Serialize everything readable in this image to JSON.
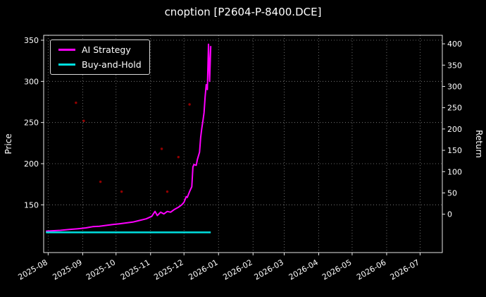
{
  "title": "cnoption [P2604-P-8400.DCE]",
  "colors": {
    "background": "#000000",
    "text": "#ffffff",
    "grid": "#888888",
    "axis": "#ffffff",
    "ai_strategy": "#ff00ff",
    "buy_and_hold": "#00e0e0",
    "signal_marker": "#a40000"
  },
  "legend": {
    "items": [
      {
        "label": "AI Strategy",
        "color": "#ff00ff"
      },
      {
        "label": "Buy-and-Hold",
        "color": "#00e0e0"
      }
    ]
  },
  "chart_data": {
    "type": "line",
    "title": "cnoption [P2604-P-8400.DCE]",
    "xlabel": "",
    "ylabel_left": "Price",
    "ylabel_right": "Return",
    "x_domain": [
      "2025-07-28",
      "2026-07-21"
    ],
    "x_ticks": [
      {
        "date": "2025-08-01",
        "label": "2025-08"
      },
      {
        "date": "2025-09-01",
        "label": "2025-09"
      },
      {
        "date": "2025-10-01",
        "label": "2025-10"
      },
      {
        "date": "2025-11-01",
        "label": "2025-11"
      },
      {
        "date": "2025-12-01",
        "label": "2025-12"
      },
      {
        "date": "2026-01-01",
        "label": "2026-01"
      },
      {
        "date": "2026-02-01",
        "label": "2026-02"
      },
      {
        "date": "2026-03-01",
        "label": "2026-03"
      },
      {
        "date": "2026-04-01",
        "label": "2026-04"
      },
      {
        "date": "2026-05-01",
        "label": "2026-05"
      },
      {
        "date": "2026-06-01",
        "label": "2026-06"
      },
      {
        "date": "2026-07-01",
        "label": "2026-07"
      }
    ],
    "y_left_range": [
      92,
      356
    ],
    "y_left_ticks": [
      150,
      200,
      250,
      300,
      350
    ],
    "y_right_range": [
      -90,
      420
    ],
    "y_right_ticks": [
      0,
      50,
      100,
      150,
      200,
      250,
      300,
      350,
      400
    ],
    "grid": true,
    "legend_position": "upper-left",
    "series": [
      {
        "name": "AI Strategy",
        "axis": "left",
        "color": "#ff00ff",
        "width": 2,
        "points": [
          [
            "2025-07-30",
            118
          ],
          [
            "2025-08-05",
            118.5
          ],
          [
            "2025-08-12",
            119
          ],
          [
            "2025-08-20",
            120
          ],
          [
            "2025-08-28",
            121
          ],
          [
            "2025-09-04",
            122
          ],
          [
            "2025-09-10",
            123.5
          ],
          [
            "2025-09-16",
            124
          ],
          [
            "2025-09-22",
            125
          ],
          [
            "2025-09-28",
            126
          ],
          [
            "2025-10-04",
            127
          ],
          [
            "2025-10-10",
            128
          ],
          [
            "2025-10-16",
            129
          ],
          [
            "2025-10-22",
            131
          ],
          [
            "2025-10-28",
            133
          ],
          [
            "2025-11-02",
            136
          ],
          [
            "2025-11-05",
            142
          ],
          [
            "2025-11-07",
            137
          ],
          [
            "2025-11-10",
            141
          ],
          [
            "2025-11-13",
            139
          ],
          [
            "2025-11-16",
            142
          ],
          [
            "2025-11-19",
            141
          ],
          [
            "2025-11-22",
            144
          ],
          [
            "2025-11-26",
            147
          ],
          [
            "2025-11-29",
            150
          ],
          [
            "2025-12-01",
            153
          ],
          [
            "2025-12-03",
            160
          ],
          [
            "2025-12-04",
            159
          ],
          [
            "2025-12-06",
            166
          ],
          [
            "2025-12-08",
            172
          ],
          [
            "2025-12-09",
            196
          ],
          [
            "2025-12-10",
            199
          ],
          [
            "2025-12-12",
            198
          ],
          [
            "2025-12-13",
            205
          ],
          [
            "2025-12-15",
            214
          ],
          [
            "2025-12-16",
            232
          ],
          [
            "2025-12-17",
            243
          ],
          [
            "2025-12-18",
            252
          ],
          [
            "2025-12-19",
            262
          ],
          [
            "2025-12-20",
            281
          ],
          [
            "2025-12-21",
            296
          ],
          [
            "2025-12-22",
            290
          ],
          [
            "2025-12-23",
            345
          ],
          [
            "2025-12-24",
            300
          ],
          [
            "2025-12-25",
            343
          ]
        ]
      },
      {
        "name": "Buy-and-Hold",
        "axis": "left",
        "color": "#00e0e0",
        "width": 2.5,
        "points": [
          [
            "2025-07-30",
            116.5
          ],
          [
            "2025-12-25",
            116.5
          ]
        ]
      }
    ],
    "scatter": {
      "name": "signal-markers",
      "color": "#a40000",
      "points": [
        [
          "2025-08-26",
          274
        ],
        [
          "2025-09-02",
          252
        ],
        [
          "2025-09-17",
          178
        ],
        [
          "2025-10-06",
          166
        ],
        [
          "2025-11-11",
          218
        ],
        [
          "2025-11-16",
          166
        ],
        [
          "2025-11-26",
          208
        ],
        [
          "2025-12-06",
          272
        ]
      ]
    }
  }
}
